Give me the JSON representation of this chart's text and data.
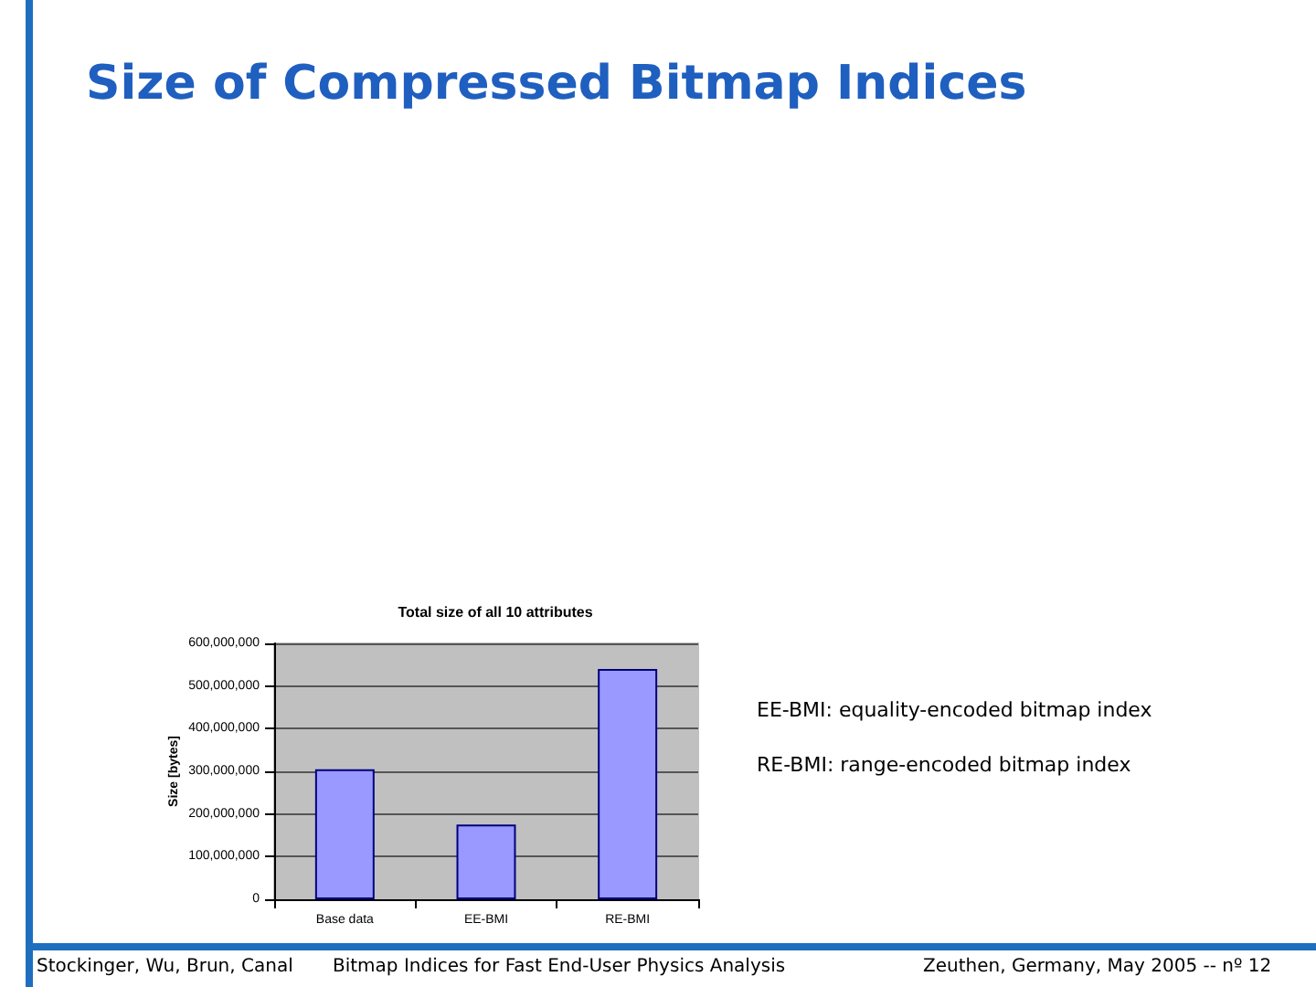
{
  "chart_data": {
    "type": "bar",
    "title": "Size of Compressed Bitmap Indices",
    "subtitle": "Total size of all 10 attributes",
    "ylabel": "Size [bytes]",
    "categories": [
      "Base data",
      "EE-BMI",
      "RE-BMI"
    ],
    "values": [
      305000000,
      175000000,
      540000000
    ],
    "color": "#9999ff",
    "ylim": [
      0,
      600000000
    ],
    "yticks": [
      0,
      {
        "value": 100000000,
        "label": "100,000,000"
      },
      {
        "value": 200000000,
        "label": "200,000,000"
      },
      {
        "value": 300000000,
        "label": "300,000,000"
      },
      {
        "value": 400000000,
        "label": "400,000,000"
      },
      {
        "value": 500000000,
        "label": "500,000,000"
      },
      {
        "value": 600000000,
        "label": "600,000,000"
      }
    ],
    "grid": "y",
    "annotations": [
      "EE-BMI: equality-encoded bitmap index",
      "RE-BMI: range-encoded bitmap index",
      "Stockinger, Wu, Brun, Canal",
      "Bitmap Indices for Fast End-User Physics Analysis",
      "Zeuthen, Germany, May 2005 -- nº 12"
    ]
  }
}
